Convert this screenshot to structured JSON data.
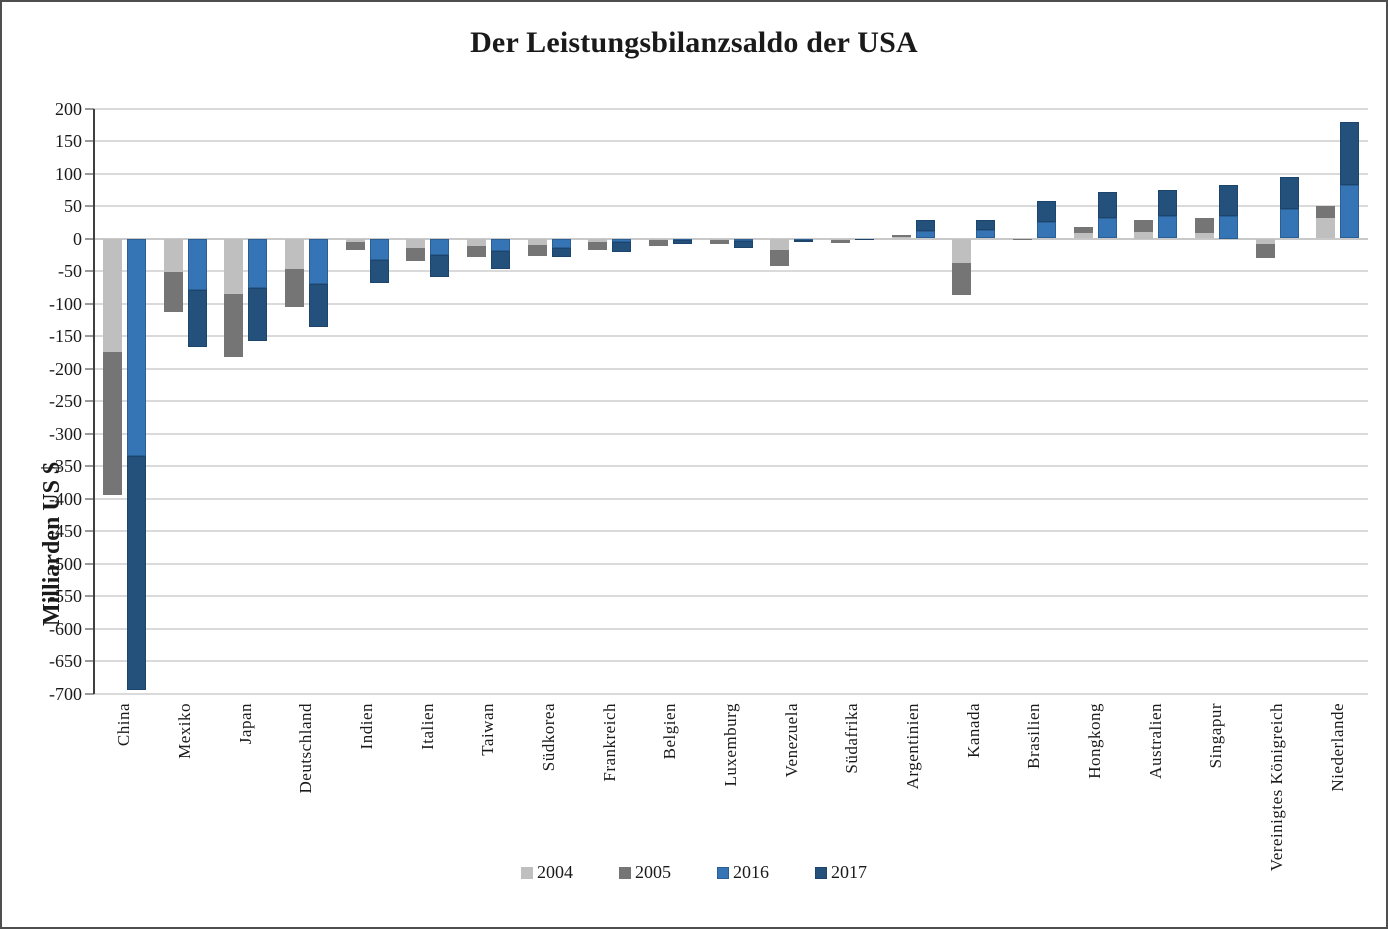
{
  "title": "Der Leistungsbilanzsaldo der USA",
  "colors": {
    "s2004": "#bfbfbf",
    "s2005": "#757575",
    "s2016": "#3575b5",
    "s2017": "#24517c",
    "gridline": "#dadada",
    "zero_line": "#c9c9c9",
    "axis_line": "#3f3f3f"
  },
  "chart_data": {
    "type": "bar",
    "stacked": true,
    "stacks": [
      [
        "2004",
        "2005"
      ],
      [
        "2016",
        "2017"
      ]
    ],
    "title": "Der Leistungsbilanzsaldo der USA",
    "xlabel": "",
    "ylabel": "Milliarden US $",
    "ylim": [
      -700,
      200
    ],
    "ystep": 50,
    "grid": "horizontal",
    "legend_position": "bottom",
    "legend": [
      "2004",
      "2005",
      "2016",
      "2017"
    ],
    "categories": [
      "China",
      "Mexiko",
      "Japan",
      "Deutschland",
      "Indien",
      "Italien",
      "Taiwan",
      "Südkorea",
      "Frankreich",
      "Belgien",
      "Luxemburg",
      "Venezuela",
      "Südafrika",
      "Argentinien",
      "Kanada",
      "Brasilien",
      "Hongkong",
      "Australien",
      "Singapur",
      "Vereinigtes Königreich",
      "Niederlande"
    ],
    "series": [
      {
        "name": "2004",
        "values": [
          -174,
          -51,
          -86,
          -47,
          -6,
          -15,
          -11,
          -10,
          -5,
          -3,
          -2,
          -17,
          -3,
          2,
          -38,
          -1,
          8,
          10,
          8,
          -8,
          31
        ]
      },
      {
        "name": "2005",
        "values": [
          -220,
          -62,
          -96,
          -58,
          -11,
          -19,
          -17,
          -17,
          -13,
          -9,
          -6,
          -25,
          -4,
          3,
          -49,
          -2,
          10,
          18,
          23,
          -22,
          19
        ]
      },
      {
        "name": "2016",
        "values": [
          -335,
          -79,
          -76,
          -70,
          -33,
          -26,
          -19,
          -15,
          -5,
          -3,
          -4,
          -2,
          -1,
          12,
          13,
          26,
          32,
          34,
          35,
          46,
          82
        ]
      },
      {
        "name": "2017",
        "values": [
          -360,
          -88,
          -82,
          -66,
          -36,
          -34,
          -28,
          -14,
          -15,
          -6,
          -10,
          -4,
          -2,
          16,
          16,
          32,
          40,
          41,
          47,
          49,
          98
        ]
      }
    ]
  }
}
